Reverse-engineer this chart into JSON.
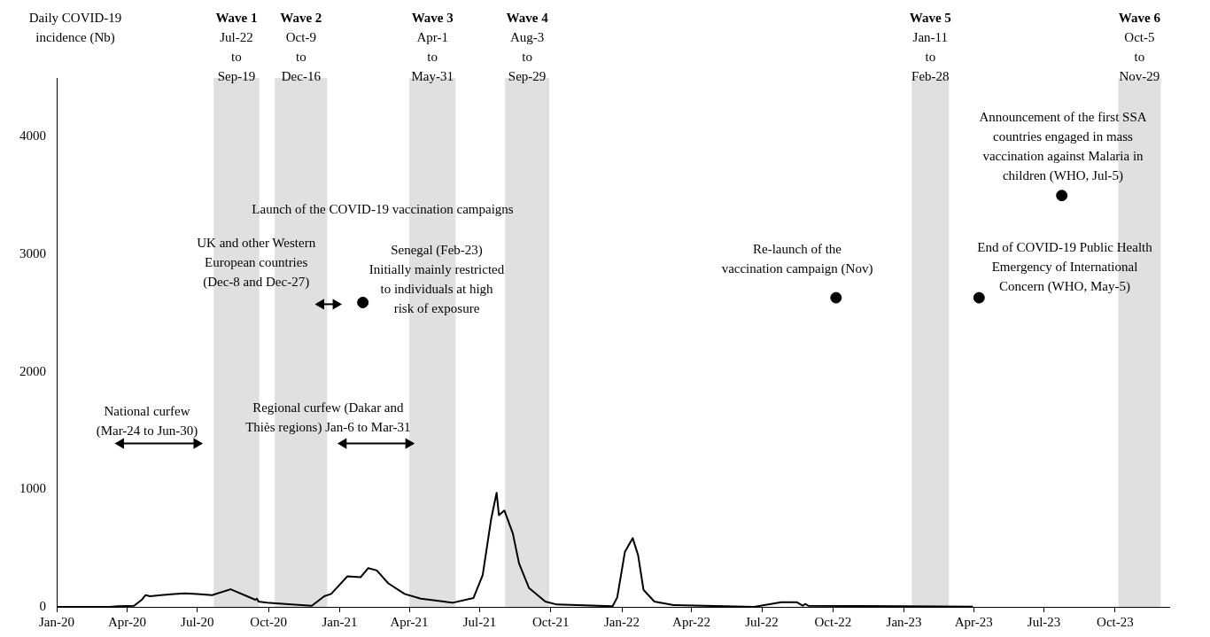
{
  "chart_data": {
    "type": "line",
    "ylabel": "Daily COVID-19\nincidence (Nb)",
    "xlim": [
      "2020-01-01",
      "2023-12-10"
    ],
    "ylim": [
      0,
      4500
    ],
    "yticks": [
      0,
      1000,
      2000,
      3000,
      4000
    ],
    "xticks": [
      {
        "value": "2020-01-01",
        "label": "Jan-20"
      },
      {
        "value": "2020-04-01",
        "label": "Apr-20"
      },
      {
        "value": "2020-07-01",
        "label": "Jul-20"
      },
      {
        "value": "2020-10-01",
        "label": "Oct-20"
      },
      {
        "value": "2021-01-01",
        "label": "Jan-21"
      },
      {
        "value": "2021-04-01",
        "label": "Apr-21"
      },
      {
        "value": "2021-07-01",
        "label": "Jul-21"
      },
      {
        "value": "2021-10-01",
        "label": "Oct-21"
      },
      {
        "value": "2022-01-01",
        "label": "Jan-22"
      },
      {
        "value": "2022-04-01",
        "label": "Apr-22"
      },
      {
        "value": "2022-07-01",
        "label": "Jul-22"
      },
      {
        "value": "2022-10-01",
        "label": "Oct-22"
      },
      {
        "value": "2023-01-01",
        "label": "Jan-23"
      },
      {
        "value": "2023-04-01",
        "label": "Apr-23"
      },
      {
        "value": "2023-07-01",
        "label": "Jul-23"
      },
      {
        "value": "2023-10-01",
        "label": "Oct-23"
      }
    ],
    "grid": false,
    "legend": false,
    "series": [
      {
        "type": "line",
        "color": "#000000",
        "marker": "none",
        "x": [
          "2020-01-01",
          "2020-03-10",
          "2020-03-20",
          "2020-04-10",
          "2020-04-20",
          "2020-04-25",
          "2020-05-01",
          "2020-05-15",
          "2020-06-01",
          "2020-06-15",
          "2020-07-01",
          "2020-07-20",
          "2020-08-13",
          "2020-09-14",
          "2020-09-16",
          "2020-09-18",
          "2020-09-29",
          "2020-10-31",
          "2020-11-26",
          "2020-12-12",
          "2020-12-21",
          "2021-01-11",
          "2021-01-28",
          "2021-02-07",
          "2021-02-18",
          "2021-03-05",
          "2021-03-26",
          "2021-04-16",
          "2021-05-16",
          "2021-05-27",
          "2021-06-23",
          "2021-07-05",
          "2021-07-16",
          "2021-07-23",
          "2021-07-26",
          "2021-08-02",
          "2021-08-13",
          "2021-08-21",
          "2021-09-03",
          "2021-09-24",
          "2021-10-09",
          "2021-12-20",
          "2021-12-26",
          "2022-01-05",
          "2022-01-15",
          "2022-01-22",
          "2022-01-29",
          "2022-02-12",
          "2022-03-09",
          "2022-06-21",
          "2022-07-26",
          "2022-08-15",
          "2022-08-23",
          "2022-08-26",
          "2022-08-30",
          "2022-11-02",
          "2023-03-31"
        ],
        "values": [
          0,
          0,
          5,
          10,
          60,
          100,
          90,
          100,
          110,
          115,
          110,
          100,
          150,
          60,
          70,
          45,
          35,
          20,
          10,
          90,
          110,
          260,
          252,
          330,
          310,
          200,
          110,
          70,
          45,
          35,
          75,
          270,
          750,
          970,
          780,
          820,
          625,
          370,
          160,
          45,
          20,
          5,
          80,
          470,
          585,
          440,
          145,
          45,
          15,
          0,
          40,
          40,
          10,
          25,
          10,
          8,
          2
        ]
      },
      {
        "type": "scatter",
        "color": "#000000",
        "marker": "circle",
        "x": [
          "2021-01-31",
          "2022-10-05",
          "2023-04-08",
          "2023-07-24"
        ],
        "values": [
          2590,
          2630,
          2630,
          3500
        ]
      },
      {
        "type": "line",
        "color": "#000000",
        "marker": "triangle",
        "x": [
          "2020-03-24",
          "2020-06-30"
        ],
        "values": [
          1390,
          1390
        ]
      },
      {
        "type": "line",
        "color": "#000000",
        "marker": "triangle",
        "x": [
          "2021-01-06",
          "2021-03-31"
        ],
        "values": [
          1390,
          1390
        ]
      },
      {
        "type": "line",
        "color": "#000000",
        "marker": "triangle",
        "x": [
          "2020-12-08",
          "2020-12-27"
        ],
        "values": [
          2575,
          2575
        ]
      }
    ],
    "bands": [
      {
        "axis": "x",
        "from": "2020-07-22",
        "to": "2020-09-19",
        "label": "Wave 1\nJul-22\nto\nSep-19",
        "color": "#e0e0e0"
      },
      {
        "axis": "x",
        "from": "2020-10-09",
        "to": "2020-12-16",
        "label": "Wave 2\nOct-9\nto\nDec-16",
        "color": "#e0e0e0"
      },
      {
        "axis": "x",
        "from": "2021-04-01",
        "to": "2021-05-31",
        "label": "Wave 3\nApr-1\nto\nMay-31",
        "color": "#e0e0e0"
      },
      {
        "axis": "x",
        "from": "2021-08-03",
        "to": "2021-09-29",
        "label": "Wave 4\nAug-3\nto\nSep-29",
        "color": "#e0e0e0"
      },
      {
        "axis": "x",
        "from": "2023-01-11",
        "to": "2023-02-28",
        "label": "Wave 5\nJan-11\nto\nFeb-28",
        "color": "#e0e0e0"
      },
      {
        "axis": "x",
        "from": "2023-10-05",
        "to": "2023-11-29",
        "label": "Wave 6\nOct-5\nto\nNov-29",
        "color": "#e0e0e0"
      }
    ],
    "annotations": [
      "Launch of the COVID-19 vaccination campaigns",
      {
        "text": "UK and other Western\nEuropean countries\n(Dec-8 and Dec-27)",
        "x": "2020-09-15",
        "y": 2921
      },
      "Senegal (Feb-23)\nInitially mainly restricted\nto individuals at high\nrisk of exposure",
      "National curfew\n(Mar-24 to Jun-30)",
      {
        "text": "Regional curfew (Dakar and\nThiès regions) Jan-6 to Mar-31",
        "x": "2020-12-17",
        "y": 1603
      },
      "Re-launch of the\nvaccination campaign (Nov)",
      "End of COVID-19 Public Health\nEmergency of International\nConcern (WHO, May-5)",
      "Announcement of the first SSA\ncountries engaged in mass\nvaccination against Malaria in\nchildren (WHO, Jul-5)"
    ]
  }
}
